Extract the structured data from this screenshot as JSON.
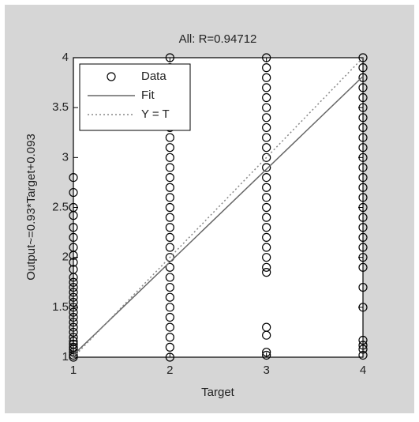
{
  "chart_data": {
    "type": "scatter",
    "title": "All: R=0.94712",
    "xlabel": "Target",
    "ylabel": "Output~=0.93*Target+0.093",
    "xlim": [
      1,
      4
    ],
    "ylim": [
      1,
      4
    ],
    "xticks": [
      1,
      2,
      3,
      4
    ],
    "yticks": [
      1,
      1.5,
      2,
      2.5,
      3,
      3.5,
      4
    ],
    "legend": "upper left",
    "grid": false,
    "series": [
      {
        "name": "Data",
        "color": "#000000",
        "marker": "circle",
        "x": [
          1,
          1,
          1,
          1,
          1,
          1,
          1,
          1,
          1,
          1,
          1,
          1,
          1,
          1,
          1,
          1,
          1,
          1,
          1,
          1,
          1,
          1,
          1,
          1,
          1,
          1,
          1,
          1,
          1,
          1,
          2,
          2,
          2,
          2,
          2,
          2,
          2,
          2,
          2,
          2,
          2,
          2,
          2,
          2,
          2,
          2,
          2,
          2,
          2,
          2,
          2,
          2,
          2,
          2,
          2,
          2,
          2,
          2,
          2,
          2,
          2,
          3,
          3,
          3,
          3,
          3,
          3,
          3,
          3,
          3,
          3,
          3,
          3,
          3,
          3,
          3,
          3,
          3,
          3,
          3,
          3,
          3,
          3,
          3,
          3,
          3,
          3,
          3,
          4,
          4,
          4,
          4,
          4,
          4,
          4,
          4,
          4,
          4,
          4,
          4,
          4,
          4,
          4,
          4,
          4,
          4,
          4,
          4,
          4,
          4,
          4,
          4,
          4,
          4,
          4,
          4
        ],
        "y": [
          1,
          1.02,
          1.05,
          1.08,
          1.1,
          1.13,
          1.16,
          1.2,
          1.25,
          1.3,
          1.35,
          1.4,
          1.45,
          1.5,
          1.55,
          1.6,
          1.65,
          1.7,
          1.75,
          1.8,
          1.88,
          1.95,
          2.02,
          2.1,
          2.2,
          2.3,
          2.42,
          2.5,
          2.65,
          2.8,
          1,
          1.1,
          1.2,
          1.3,
          1.4,
          1.5,
          1.6,
          1.7,
          1.8,
          1.9,
          2,
          2.1,
          2.2,
          2.3,
          2.4,
          2.5,
          2.6,
          2.7,
          2.8,
          2.9,
          3,
          3.1,
          3.2,
          3.3,
          3.4,
          3.5,
          3.6,
          3.7,
          3.8,
          3.9,
          4,
          1.02,
          1.05,
          1.22,
          1.3,
          1.85,
          1.9,
          2,
          2.1,
          2.2,
          2.3,
          2.4,
          2.5,
          2.6,
          2.7,
          2.8,
          2.9,
          3,
          3.1,
          3.2,
          3.3,
          3.4,
          3.5,
          3.6,
          3.7,
          3.8,
          3.9,
          4,
          1.02,
          1.08,
          1.12,
          1.17,
          1.5,
          1.7,
          1.9,
          2,
          2.1,
          2.2,
          2.3,
          2.4,
          2.5,
          2.6,
          2.7,
          2.8,
          2.9,
          3,
          3.1,
          3.2,
          3.3,
          3.4,
          3.5,
          3.6,
          3.7,
          3.8,
          3.9,
          4
        ]
      },
      {
        "name": "Fit",
        "color": "#666666",
        "line_style": "solid",
        "x": [
          1,
          4
        ],
        "y": [
          1.023,
          3.813
        ]
      },
      {
        "name": "Y = T",
        "color": "#888888",
        "line_style": "dotted",
        "x": [
          1,
          4
        ],
        "y": [
          1,
          4
        ]
      }
    ]
  }
}
